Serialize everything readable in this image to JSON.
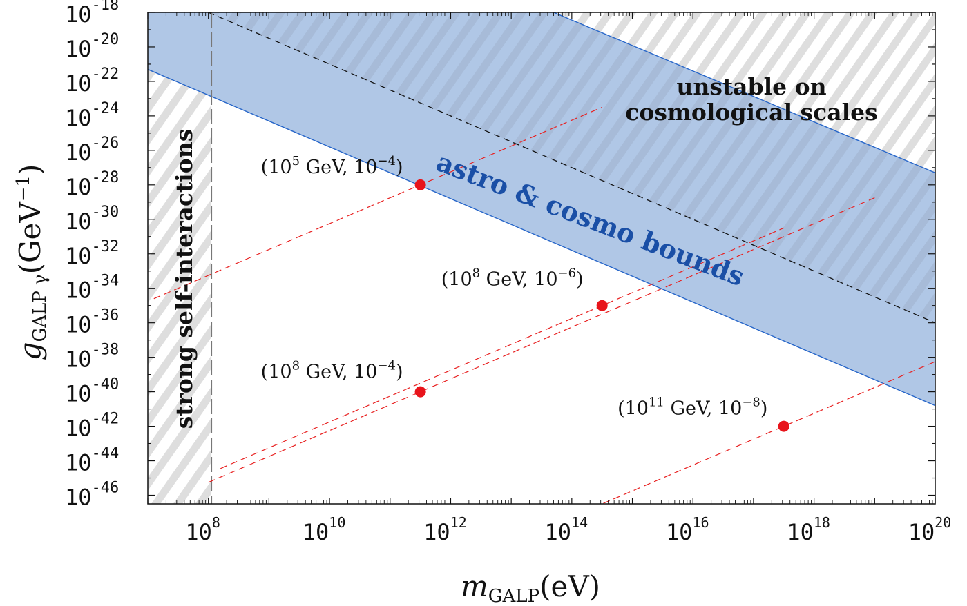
{
  "chart_data": {
    "type": "scatter",
    "xscale": "log10",
    "yscale": "log10",
    "xlim_exp": [
      7.0,
      20.0
    ],
    "ylim_exp": [
      -46.5,
      -18.0
    ],
    "xlabel": "m",
    "xlabel_sub": "GALP",
    "xlabel_unit": "(eV)",
    "ylabel": "g",
    "ylabel_sub": "GALP γ",
    "ylabel_unit": "(GeV",
    "ylabel_unit_exp": "−1",
    "ylabel_unit_close": ")",
    "x_ticks": [
      {
        "base": "10",
        "exp": "8",
        "value": 8
      },
      {
        "base": "10",
        "exp": "10",
        "value": 10
      },
      {
        "base": "10",
        "exp": "12",
        "value": 12
      },
      {
        "base": "10",
        "exp": "14",
        "value": 14
      },
      {
        "base": "10",
        "exp": "16",
        "value": 16
      },
      {
        "base": "10",
        "exp": "18",
        "value": 18
      },
      {
        "base": "10",
        "exp": "20",
        "value": 20
      }
    ],
    "y_ticks": [
      {
        "base": "10",
        "exp": "-18",
        "value": -18
      },
      {
        "base": "10",
        "exp": "-20",
        "value": -20
      },
      {
        "base": "10",
        "exp": "-22",
        "value": -22
      },
      {
        "base": "10",
        "exp": "-24",
        "value": -24
      },
      {
        "base": "10",
        "exp": "-26",
        "value": -26
      },
      {
        "base": "10",
        "exp": "-28",
        "value": -28
      },
      {
        "base": "10",
        "exp": "-30",
        "value": -30
      },
      {
        "base": "10",
        "exp": "-32",
        "value": -32
      },
      {
        "base": "10",
        "exp": "-34",
        "value": -34
      },
      {
        "base": "10",
        "exp": "-36",
        "value": -36
      },
      {
        "base": "10",
        "exp": "-38",
        "value": -38
      },
      {
        "base": "10",
        "exp": "-40",
        "value": -40
      },
      {
        "base": "10",
        "exp": "-42",
        "value": -42
      },
      {
        "base": "10",
        "exp": "-44",
        "value": -44
      },
      {
        "base": "10",
        "exp": "-46",
        "value": -46
      }
    ],
    "regions": {
      "astro_cosmo_bounds": {
        "label": "astro & cosmo bounds",
        "upper_edge": [
          [
            13.7,
            -18.0
          ],
          [
            20.0,
            -27.3
          ]
        ],
        "lower_edge": [
          [
            7.0,
            -21.3
          ],
          [
            20.0,
            -40.8
          ]
        ],
        "color": "#b0c7e6"
      },
      "unstable": {
        "label_line1": "unstable on",
        "label_line2": "cosmological scales",
        "boundary": [
          [
            8.0,
            -18.0
          ],
          [
            20.0,
            -36.0
          ]
        ]
      },
      "strong_self_interactions": {
        "label": "strong self-interactions",
        "x_max": 8.05
      }
    },
    "series": [
      {
        "name": "10^5 GeV, 10^-4",
        "slope": 1.5,
        "through": [
          11.5,
          -28.0
        ]
      },
      {
        "name": "10^8 GeV, 10^-6",
        "slope": 1.5,
        "through": [
          14.5,
          -35.0
        ]
      },
      {
        "name": "10^8 GeV, 10^-4",
        "slope": 1.5,
        "through": [
          11.5,
          -40.0
        ]
      },
      {
        "name": "10^11 GeV, 10^-8",
        "slope": 1.5,
        "through": [
          17.5,
          -42.0
        ]
      }
    ],
    "points": [
      {
        "x": 11.5,
        "y": -28.0,
        "label_gev": "5",
        "label_eps": "−4"
      },
      {
        "x": 14.5,
        "y": -35.0,
        "label_gev": "8",
        "label_eps": "−6"
      },
      {
        "x": 11.5,
        "y": -40.0,
        "label_gev": "8",
        "label_eps": "−4"
      },
      {
        "x": 17.5,
        "y": -42.0,
        "label_gev": "11",
        "label_eps": "−8"
      }
    ],
    "point_label_text": {
      "base": "(10",
      "unit": " GeV, 10",
      "close": ")"
    }
  },
  "colors": {
    "band": "#b0c7e6",
    "band_edge": "#2766c9",
    "points": "#e8141b",
    "dashed": "#e82020",
    "hatch": "#d9d9d9"
  }
}
